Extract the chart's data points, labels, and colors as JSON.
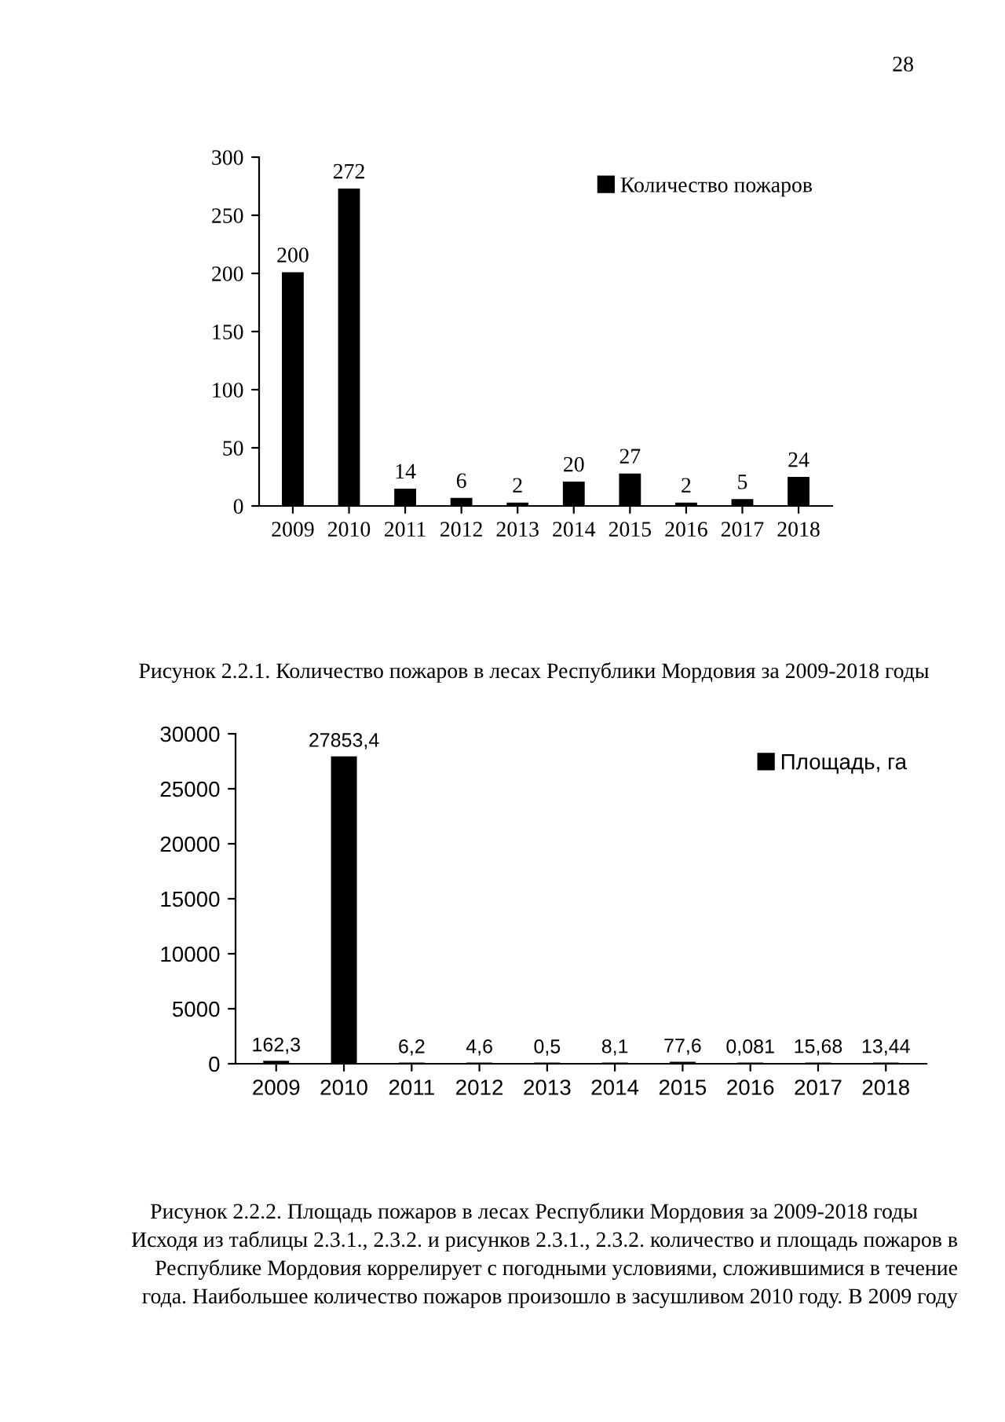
{
  "chart_data": [
    {
      "type": "bar",
      "categories": [
        "2009",
        "2010",
        "2011",
        "2012",
        "2013",
        "2014",
        "2015",
        "2016",
        "2017",
        "2018"
      ],
      "series": [
        {
          "name": "Количество пожаров",
          "color": "#000000",
          "values": [
            200,
            272,
            14,
            6,
            2,
            20,
            27,
            2,
            5,
            24
          ]
        }
      ],
      "ylim": [
        0,
        300
      ],
      "yticks": [
        0,
        50,
        100,
        150,
        200,
        250,
        300
      ],
      "data_labels": true,
      "legend": "top right",
      "grid": false,
      "annotations": [
        "28",
        "Рисунок 2.2.1. Количество пожаров в лесах Республики Мордовия за 2009-2018 годы"
      ]
    },
    {
      "type": "bar",
      "categories": [
        "2009",
        "2010",
        "2011",
        "2012",
        "2013",
        "2014",
        "2015",
        "2016",
        "2017",
        "2018"
      ],
      "series": [
        {
          "name": "Площадь, га",
          "color": "#000000",
          "values": [
            162.3,
            27853.4,
            6.2,
            4.6,
            0.5,
            8.1,
            77.6,
            0.081,
            15.68,
            13.44
          ],
          "value_labels": [
            "162,3",
            "27853,4",
            "6,2",
            "4,6",
            "0,5",
            "8,1",
            "77,6",
            "0,081",
            "15,68",
            "13,44"
          ]
        }
      ],
      "ylim": [
        0,
        30000
      ],
      "yticks": [
        0,
        5000,
        10000,
        15000,
        20000,
        25000,
        30000
      ],
      "legend": "top right",
      "grid": false,
      "annotations": [
        "Рисунок 2.2.2. Площадь пожаров в лесах Республики Мордовия за 2009-2018 годы",
        "Исходя из таблицы 2.3.1., 2.3.2. и рисунков 2.3.1., 2.3.2. количество и площадь пожаров в",
        "Республике Мордовия коррелирует с погодными условиями, сложившимися в течение",
        "года. Наибольшее количество пожаров произошло в засушливом 2010 году. В 2009 году"
      ]
    }
  ]
}
